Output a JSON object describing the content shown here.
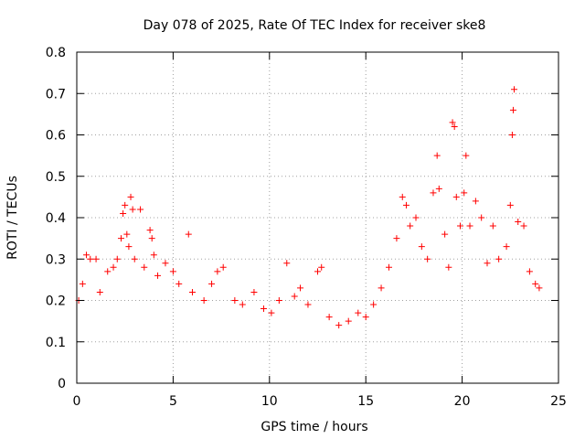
{
  "chart_data": {
    "type": "scatter",
    "title": "Day 078 of 2025, Rate Of TEC Index for receiver ske8",
    "xlabel": "GPS time / hours",
    "ylabel": "ROTI / TECUs",
    "xlim": [
      0,
      25
    ],
    "ylim": [
      0,
      0.8
    ],
    "xticks": [
      0,
      5,
      10,
      15,
      20,
      25
    ],
    "xtick_labels": [
      "0",
      "5",
      "10",
      "15",
      "20",
      "25"
    ],
    "yticks": [
      0,
      0.1,
      0.2,
      0.3,
      0.4,
      0.5,
      0.6,
      0.7,
      0.8
    ],
    "ytick_labels": [
      "0",
      "0.1",
      "0.2",
      "0.3",
      "0.4",
      "0.5",
      "0.6",
      "0.7",
      "0.8"
    ],
    "grid": true,
    "marker": "+",
    "color": "#ff0000",
    "series": [
      {
        "name": "ROTI",
        "points": [
          [
            0.1,
            0.2
          ],
          [
            0.3,
            0.24
          ],
          [
            0.5,
            0.31
          ],
          [
            0.7,
            0.3
          ],
          [
            1.0,
            0.3
          ],
          [
            1.2,
            0.22
          ],
          [
            1.6,
            0.27
          ],
          [
            1.9,
            0.28
          ],
          [
            2.1,
            0.3
          ],
          [
            2.3,
            0.35
          ],
          [
            2.4,
            0.41
          ],
          [
            2.5,
            0.43
          ],
          [
            2.6,
            0.36
          ],
          [
            2.7,
            0.33
          ],
          [
            2.8,
            0.45
          ],
          [
            2.9,
            0.42
          ],
          [
            3.0,
            0.3
          ],
          [
            3.3,
            0.42
          ],
          [
            3.5,
            0.28
          ],
          [
            3.8,
            0.37
          ],
          [
            3.9,
            0.35
          ],
          [
            4.0,
            0.31
          ],
          [
            4.2,
            0.26
          ],
          [
            4.6,
            0.29
          ],
          [
            5.0,
            0.27
          ],
          [
            5.3,
            0.24
          ],
          [
            5.8,
            0.36
          ],
          [
            6.0,
            0.22
          ],
          [
            6.6,
            0.2
          ],
          [
            7.0,
            0.24
          ],
          [
            7.3,
            0.27
          ],
          [
            7.6,
            0.28
          ],
          [
            8.2,
            0.2
          ],
          [
            8.6,
            0.19
          ],
          [
            9.2,
            0.22
          ],
          [
            9.7,
            0.18
          ],
          [
            10.1,
            0.17
          ],
          [
            10.5,
            0.2
          ],
          [
            10.9,
            0.29
          ],
          [
            11.3,
            0.21
          ],
          [
            11.6,
            0.23
          ],
          [
            12.0,
            0.19
          ],
          [
            12.5,
            0.27
          ],
          [
            12.7,
            0.28
          ],
          [
            13.1,
            0.16
          ],
          [
            13.6,
            0.14
          ],
          [
            14.1,
            0.15
          ],
          [
            14.6,
            0.17
          ],
          [
            15.0,
            0.16
          ],
          [
            15.4,
            0.19
          ],
          [
            15.8,
            0.23
          ],
          [
            16.2,
            0.28
          ],
          [
            16.6,
            0.35
          ],
          [
            16.9,
            0.45
          ],
          [
            17.1,
            0.43
          ],
          [
            17.3,
            0.38
          ],
          [
            17.6,
            0.4
          ],
          [
            17.9,
            0.33
          ],
          [
            18.2,
            0.3
          ],
          [
            18.5,
            0.46
          ],
          [
            18.7,
            0.55
          ],
          [
            18.8,
            0.47
          ],
          [
            19.1,
            0.36
          ],
          [
            19.3,
            0.28
          ],
          [
            19.5,
            0.63
          ],
          [
            19.6,
            0.62
          ],
          [
            19.7,
            0.45
          ],
          [
            19.9,
            0.38
          ],
          [
            20.1,
            0.46
          ],
          [
            20.2,
            0.55
          ],
          [
            20.4,
            0.38
          ],
          [
            20.7,
            0.44
          ],
          [
            21.0,
            0.4
          ],
          [
            21.3,
            0.29
          ],
          [
            21.6,
            0.38
          ],
          [
            21.9,
            0.3
          ],
          [
            22.3,
            0.33
          ],
          [
            22.5,
            0.43
          ],
          [
            22.6,
            0.6
          ],
          [
            22.65,
            0.66
          ],
          [
            22.7,
            0.71
          ],
          [
            22.9,
            0.39
          ],
          [
            23.2,
            0.38
          ],
          [
            23.5,
            0.27
          ],
          [
            23.8,
            0.24
          ],
          [
            24.0,
            0.23
          ]
        ]
      }
    ]
  }
}
